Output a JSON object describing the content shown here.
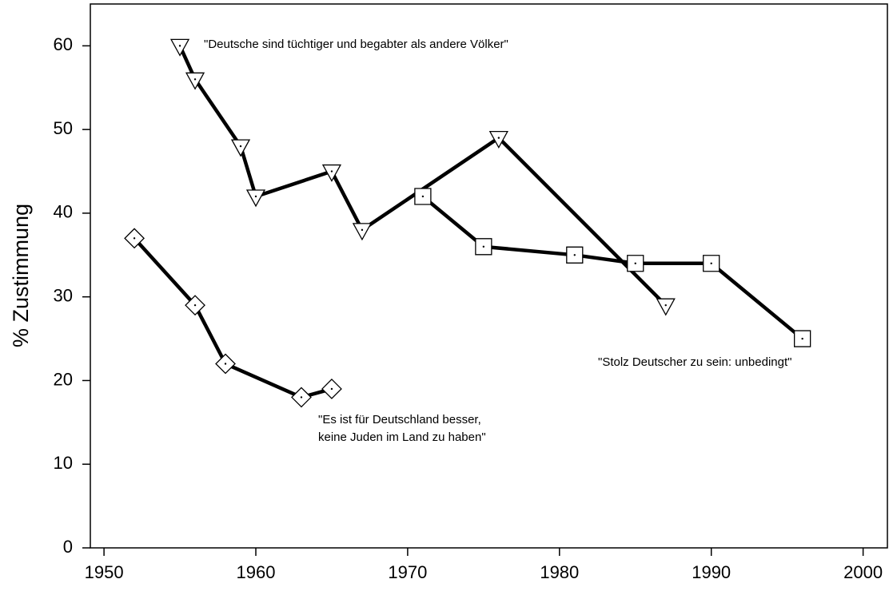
{
  "chart_data": {
    "type": "line",
    "ylabel": "% Zustimmung",
    "xlim": [
      1949.1,
      2001.6
    ],
    "xticks": [
      1950,
      1960,
      1970,
      1980,
      1990,
      2000
    ],
    "ylim": [
      0,
      65
    ],
    "yticks": [
      0,
      10,
      20,
      30,
      40,
      50,
      60
    ],
    "series": [
      {
        "marker": "triangle-down",
        "color": "#000000",
        "x": [
          1955,
          1956,
          1959,
          1960,
          1965,
          1967,
          1976,
          1987
        ],
        "values": [
          60,
          56,
          48,
          42,
          45,
          38,
          49,
          29
        ]
      },
      {
        "marker": "square",
        "color": "#000000",
        "x": [
          1971,
          1975,
          1981,
          1985,
          1990,
          1996
        ],
        "values": [
          42,
          36,
          35,
          34,
          34,
          25
        ]
      },
      {
        "marker": "diamond",
        "color": "#000000",
        "x": [
          1952,
          1956,
          1958,
          1963,
          1965
        ],
        "values": [
          37,
          29,
          22,
          18,
          19
        ]
      }
    ],
    "annotations": [
      "\"Deutsche sind tüchtiger und begabter als andere Völker\"",
      "\"Stolz Deutscher zu sein: unbedingt\"",
      "\"Es ist für Deutschland besser,",
      "keine Juden im Land zu haben\""
    ]
  }
}
